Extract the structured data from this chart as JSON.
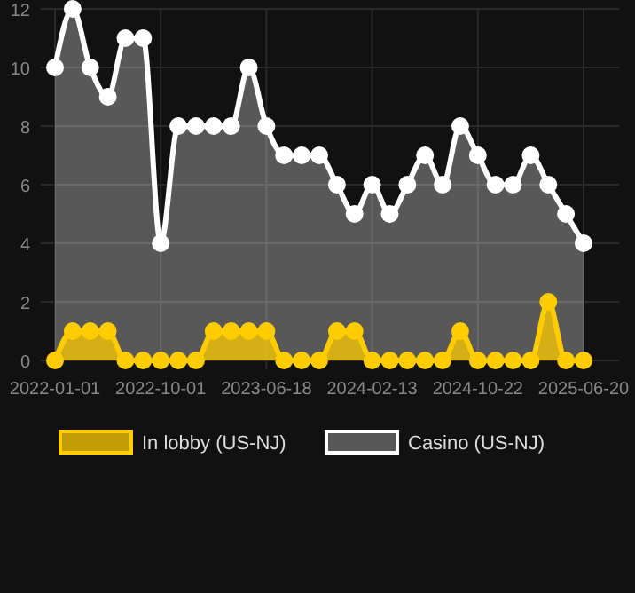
{
  "chart_data": {
    "type": "area",
    "categories": [
      "2022-01-01",
      null,
      null,
      null,
      null,
      null,
      "2022-10-01",
      null,
      null,
      null,
      null,
      null,
      "2023-06-18",
      null,
      null,
      null,
      null,
      null,
      "2024-02-13",
      null,
      null,
      null,
      null,
      null,
      "2024-10-22",
      null,
      null,
      null,
      null,
      null,
      "2025-06-20"
    ],
    "series": [
      {
        "name": "Casino (US-NJ)",
        "color": "#ffffff",
        "values": [
          10,
          12,
          10,
          9,
          11,
          11,
          4,
          8,
          8,
          8,
          8,
          10,
          8,
          7,
          7,
          7,
          6,
          5,
          6,
          5,
          6,
          7,
          6,
          8,
          7,
          6,
          6,
          7,
          6,
          5,
          4
        ]
      },
      {
        "name": "In lobby (US-NJ)",
        "color": "#ffcc00",
        "values": [
          0,
          1,
          1,
          1,
          0,
          0,
          0,
          0,
          0,
          1,
          1,
          1,
          1,
          0,
          0,
          0,
          1,
          1,
          0,
          0,
          0,
          0,
          0,
          1,
          0,
          0,
          0,
          0,
          2,
          0,
          0
        ]
      }
    ],
    "ylim": [
      0,
      12
    ],
    "yticks": [
      0,
      2,
      4,
      6,
      8,
      10,
      12
    ],
    "grid": true,
    "legend": "bottom",
    "marker": "circle"
  }
}
